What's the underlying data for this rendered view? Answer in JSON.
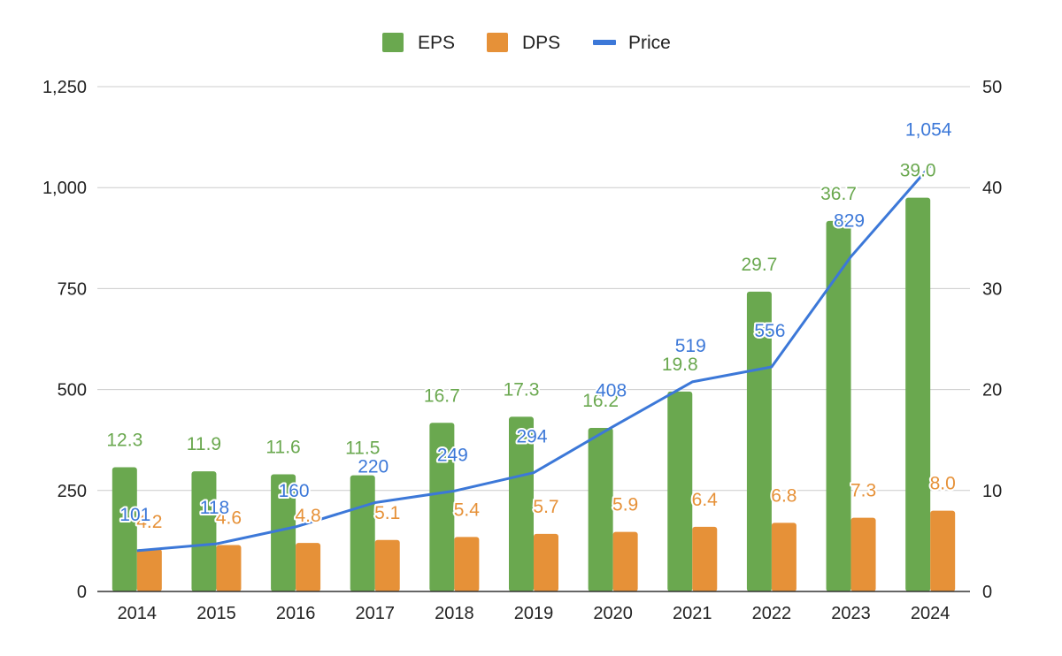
{
  "chart_data": {
    "type": "bar",
    "categories": [
      "2014",
      "2015",
      "2016",
      "2017",
      "2018",
      "2019",
      "2020",
      "2021",
      "2022",
      "2023",
      "2024"
    ],
    "series": [
      {
        "name": "EPS",
        "kind": "bar",
        "axis": "right",
        "color": "#6aa84f",
        "values": [
          12.3,
          11.9,
          11.6,
          11.5,
          16.7,
          17.3,
          16.2,
          19.8,
          29.7,
          36.7,
          39.0
        ],
        "labels": [
          "12.3",
          "11.9",
          "11.6",
          "11.5",
          "16.7",
          "17.3",
          "16.2",
          "19.8",
          "29.7",
          "36.7",
          "39.0"
        ]
      },
      {
        "name": "DPS",
        "kind": "bar",
        "axis": "right",
        "color": "#e69138",
        "values": [
          4.2,
          4.6,
          4.8,
          5.1,
          5.4,
          5.7,
          5.9,
          6.4,
          6.8,
          7.3,
          8.0
        ],
        "labels": [
          "4.2",
          "4.6",
          "4.8",
          "5.1",
          "5.4",
          "5.7",
          "5.9",
          "6.4",
          "6.8",
          "7.3",
          "8.0"
        ]
      },
      {
        "name": "Price",
        "kind": "line",
        "axis": "left",
        "color": "#3c78d8",
        "values": [
          101,
          118,
          160,
          220,
          249,
          294,
          408,
          519,
          556,
          829,
          1054
        ],
        "labels": [
          "101",
          "118",
          "160",
          "220",
          "249",
          "294",
          "408",
          "519",
          "556",
          "829",
          "1,054"
        ]
      }
    ],
    "left_axis": {
      "range": [
        0,
        1250
      ],
      "ticks": [
        0,
        250,
        500,
        750,
        1000,
        1250
      ],
      "tick_labels": [
        "0",
        "250",
        "500",
        "750",
        "1,000",
        "1,250"
      ]
    },
    "right_axis": {
      "range": [
        0,
        50
      ],
      "ticks": [
        0,
        10,
        20,
        30,
        40,
        50
      ],
      "tick_labels": [
        "0",
        "10",
        "20",
        "30",
        "40",
        "50"
      ]
    },
    "grid": true,
    "legend": "top-center",
    "title": "",
    "xlabel": "",
    "ylabel": ""
  }
}
